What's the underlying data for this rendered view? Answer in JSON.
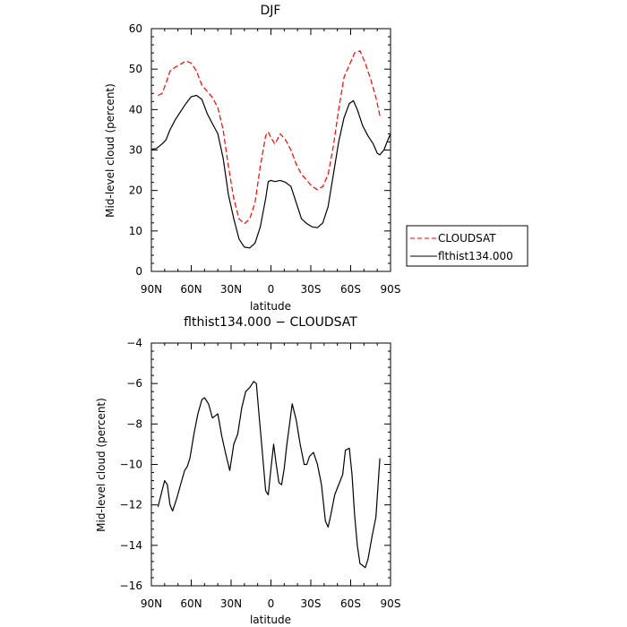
{
  "chart_data": [
    {
      "type": "line",
      "title": "DJF",
      "xlabel": "latitude",
      "ylabel": "Mid-level cloud (percent)",
      "xlim": [
        -90,
        90
      ],
      "ylim": [
        0,
        60
      ],
      "xticks": [
        {
          "value": -90,
          "label": "90N"
        },
        {
          "value": -60,
          "label": "60N"
        },
        {
          "value": -30,
          "label": "30N"
        },
        {
          "value": 0,
          "label": "0"
        },
        {
          "value": 30,
          "label": "30S"
        },
        {
          "value": 60,
          "label": "60S"
        },
        {
          "value": 90,
          "label": "90S"
        }
      ],
      "yticks": [
        0,
        10,
        20,
        30,
        40,
        50,
        60
      ],
      "legend": "outside-right",
      "series": [
        {
          "name": "CLOUDSAT",
          "color": "#ff0000",
          "style": "dashed",
          "x": [
            -85,
            -82,
            -79,
            -76,
            -72,
            -68,
            -64,
            -60,
            -56,
            -52,
            -48,
            -44,
            -40,
            -36,
            -32,
            -28,
            -24,
            -20,
            -16,
            -12,
            -8,
            -4,
            -2,
            0,
            3,
            7,
            11,
            15,
            19,
            23,
            27,
            31,
            35,
            39,
            43,
            47,
            51,
            55,
            59,
            63,
            67,
            71,
            75,
            79,
            82
          ],
          "values": [
            43.5,
            44,
            46.5,
            49.5,
            50.5,
            51.2,
            52.0,
            51.5,
            49.5,
            46,
            44.5,
            43,
            40.5,
            35,
            26,
            18,
            13,
            11.8,
            13,
            17,
            26,
            33.5,
            34.5,
            33,
            31.5,
            34,
            32.5,
            30,
            26.5,
            24,
            22.5,
            21,
            20.2,
            21,
            24,
            31,
            40,
            48,
            51,
            54,
            54.5,
            51.5,
            47.5,
            43,
            38.5
          ]
        },
        {
          "name": "flthist134.000",
          "color": "#000000",
          "style": "solid",
          "x": [
            -90,
            -86,
            -82,
            -79,
            -76,
            -72,
            -68,
            -64,
            -60,
            -56,
            -52,
            -48,
            -44,
            -40,
            -36,
            -32,
            -28,
            -24,
            -20,
            -16,
            -12,
            -8,
            -4,
            -2,
            0,
            3,
            7,
            11,
            15,
            19,
            23,
            27,
            31,
            35,
            39,
            43,
            47,
            51,
            55,
            59,
            62,
            65,
            69,
            73,
            77,
            80,
            82,
            85,
            88,
            90
          ],
          "values": [
            30.2,
            30.4,
            31.5,
            32.5,
            35,
            37.5,
            39.5,
            41.5,
            43.2,
            43.5,
            42.5,
            39,
            36.5,
            34,
            28,
            19,
            13,
            8,
            6,
            5.8,
            7,
            11,
            18,
            22.2,
            22.5,
            22.2,
            22.5,
            22,
            21,
            17,
            13,
            11.8,
            11,
            10.8,
            12,
            16,
            24,
            32,
            38,
            41.5,
            42.2,
            40,
            36,
            33.5,
            31.5,
            29.2,
            28.8,
            30,
            32.5,
            34
          ]
        }
      ]
    },
    {
      "type": "line",
      "title": "flthist134.000 − CLOUDSAT",
      "xlabel": "latitude",
      "ylabel": "Mid-level cloud (percent)",
      "xlim": [
        -90,
        90
      ],
      "ylim": [
        -16,
        -4
      ],
      "xticks": [
        {
          "value": -90,
          "label": "90N"
        },
        {
          "value": -60,
          "label": "60N"
        },
        {
          "value": -30,
          "label": "30N"
        },
        {
          "value": 0,
          "label": "0"
        },
        {
          "value": 30,
          "label": "30S"
        },
        {
          "value": 60,
          "label": "60S"
        },
        {
          "value": 90,
          "label": "90S"
        }
      ],
      "yticks": [
        -16,
        -14,
        -12,
        -10,
        -8,
        -6,
        -4
      ],
      "series": [
        {
          "color": "#000000",
          "style": "solid",
          "x": [
            -85,
            -82,
            -80,
            -78,
            -76,
            -74,
            -71,
            -68,
            -65,
            -63,
            -61,
            -58,
            -55,
            -52,
            -50,
            -47,
            -44,
            -42,
            -40,
            -37,
            -34,
            -31,
            -28,
            -25,
            -22,
            -19,
            -16,
            -13,
            -11,
            -9,
            -7,
            -4,
            -2,
            0,
            2,
            4,
            6,
            8,
            10,
            12,
            14,
            16,
            19,
            22,
            25,
            27,
            29,
            32,
            35,
            38,
            41,
            43,
            45,
            48,
            51,
            54,
            56,
            59,
            61,
            63,
            65,
            67,
            69,
            71,
            73,
            76,
            79,
            82
          ],
          "values": [
            -12.1,
            -11.3,
            -10.8,
            -11,
            -12,
            -12.3,
            -11.7,
            -11,
            -10.3,
            -10.1,
            -9.7,
            -8.5,
            -7.5,
            -6.8,
            -6.7,
            -7.0,
            -7.7,
            -7.6,
            -7.5,
            -8.6,
            -9.5,
            -10.3,
            -9,
            -8.5,
            -7.2,
            -6.4,
            -6.2,
            -5.9,
            -6.0,
            -7.5,
            -9,
            -11.3,
            -11.5,
            -10.2,
            -9.0,
            -10,
            -10.9,
            -11,
            -10.2,
            -9,
            -8,
            -7.0,
            -7.8,
            -9.0,
            -10.0,
            -10.0,
            -9.6,
            -9.4,
            -10.0,
            -11.0,
            -12.8,
            -13.1,
            -12.5,
            -11.5,
            -11.0,
            -10.5,
            -9.3,
            -9.2,
            -10.5,
            -12.5,
            -14.0,
            -14.9,
            -15.0,
            -15.1,
            -14.7,
            -13.6,
            -12.6,
            -9.7
          ]
        }
      ]
    }
  ]
}
